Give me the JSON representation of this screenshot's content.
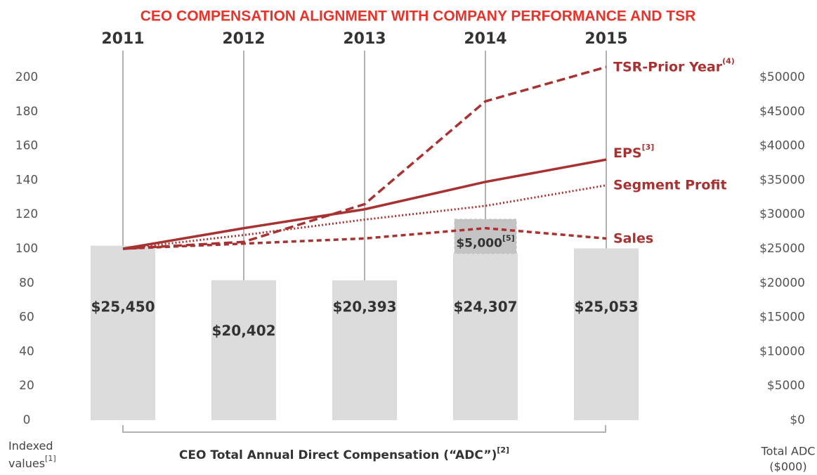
{
  "chart_data": {
    "type": "bar-line",
    "title": "CEO COMPENSATION ALIGNMENT WITH COMPANY PERFORMANCE AND TSR",
    "categories": [
      "2011",
      "2012",
      "2013",
      "2014",
      "2015"
    ],
    "bar_values": [
      25450,
      20402,
      20393,
      24307,
      25053
    ],
    "bar_value_labels": [
      "$25,450",
      "$20,402",
      "$20,393",
      "$24,307",
      "$25,053"
    ],
    "bar_color": "#dcdcdc",
    "bar_additions": [
      null,
      null,
      null,
      5000,
      null
    ],
    "bar_addition_labels": [
      null,
      null,
      null,
      "$5,000",
      null
    ],
    "bar_addition_notes": [
      null,
      null,
      null,
      "[5]",
      null
    ],
    "bar_addition_color": "#c4c4c4",
    "series": [
      {
        "name": "TSR-Prior Year",
        "note": "(4)",
        "color": "#a83232",
        "style": "dashed",
        "values": [
          100,
          104,
          126,
          186,
          206
        ]
      },
      {
        "name": "EPS",
        "note": "[3]",
        "color": "#a83232",
        "style": "solid",
        "values": [
          100,
          112,
          123,
          139,
          152
        ]
      },
      {
        "name": "Segment Profit",
        "color": "#a83232",
        "style": "dotted",
        "values": [
          100,
          108,
          117,
          125,
          137
        ]
      },
      {
        "name": "Sales",
        "color": "#a83232",
        "style": "dashed-short",
        "values": [
          100,
          103,
          106,
          112,
          106
        ]
      }
    ],
    "ylim": [
      0,
      200
    ],
    "yticks": [
      0,
      20,
      40,
      60,
      80,
      100,
      120,
      140,
      160,
      180,
      200
    ],
    "y2lim": [
      0,
      50000
    ],
    "y2ticks": [
      {
        "value": 0,
        "label": "$0"
      },
      {
        "value": 5000,
        "label": "$5000"
      },
      {
        "value": 10000,
        "label": "$10000"
      },
      {
        "value": 15000,
        "label": "$15000"
      },
      {
        "value": 20000,
        "label": "$20000"
      },
      {
        "value": 25000,
        "label": "$25000"
      },
      {
        "value": 30000,
        "label": "$30000"
      },
      {
        "value": 35000,
        "label": "$35000"
      },
      {
        "value": 40000,
        "label": "$40000"
      },
      {
        "value": 45000,
        "label": "$45000"
      },
      {
        "value": 50000,
        "label": "$50000"
      }
    ],
    "y_label": [
      "Indexed",
      "values"
    ],
    "y_label_note": "[1]",
    "x_label": "CEO Total Annual Direct Compensation (“ADC”)",
    "x_label_note": "[2]",
    "y2_label": [
      "Total ADC",
      "($000)"
    ]
  }
}
